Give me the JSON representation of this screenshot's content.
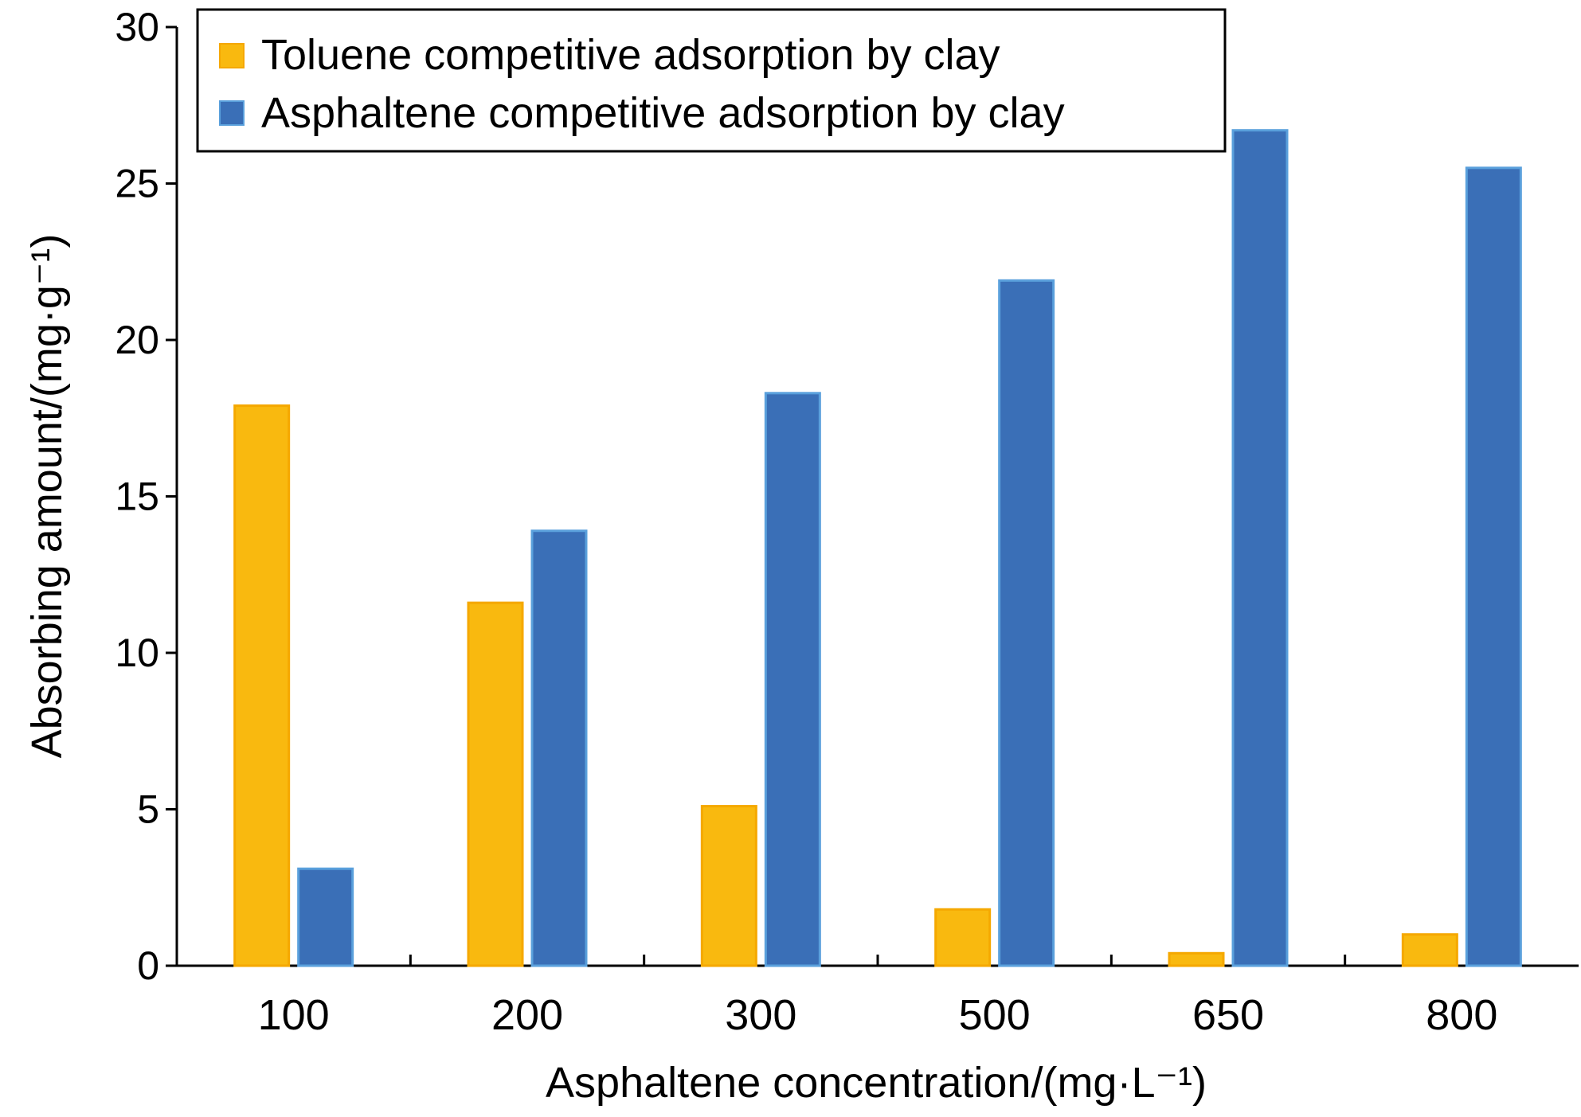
{
  "chart_data": {
    "type": "bar",
    "title": "",
    "xlabel": "Asphaltene concentration/(mg·L⁻¹)",
    "ylabel": "Absorbing amount/(mg·g⁻¹)",
    "ylim": [
      0,
      30
    ],
    "yticks": [
      "0",
      "5",
      "10",
      "15",
      "20",
      "25",
      "30"
    ],
    "categories": [
      "100",
      "200",
      "300",
      "500",
      "650",
      "800"
    ],
    "legend_position": "top-left",
    "grid": false,
    "series": [
      {
        "name": "Toluene competitive adsorption by clay",
        "color": "#f9b90f",
        "values": [
          17.9,
          11.6,
          5.1,
          1.8,
          0.4,
          1.0
        ]
      },
      {
        "name": "Asphaltene competitive adsorption by clay",
        "color": "#3a6fb7",
        "values": [
          3.1,
          13.9,
          18.3,
          21.9,
          26.7,
          25.5
        ]
      }
    ]
  }
}
